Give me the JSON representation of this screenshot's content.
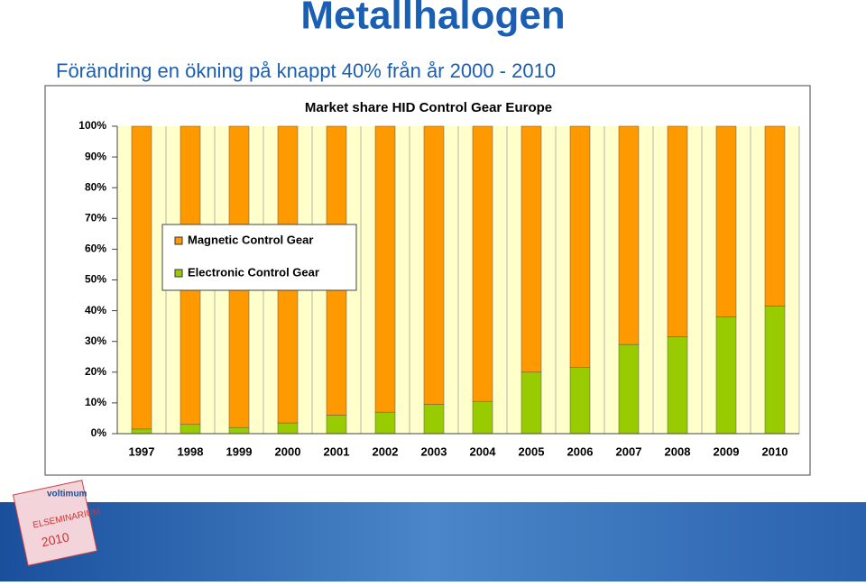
{
  "header": {
    "title": "Metallhalogen",
    "subtitle": "Förändring en ökning på knappt 40% från år 2000 - 2010"
  },
  "chart_data": {
    "type": "stacked_bar",
    "title": "Market share HID Control Gear Europe",
    "categories": [
      "1997",
      "1998",
      "1999",
      "2000",
      "2001",
      "2002",
      "2003",
      "2004",
      "2005",
      "2006",
      "2007",
      "2008",
      "2009",
      "2010"
    ],
    "series": [
      {
        "name": "Magnetic Control Gear",
        "color": "#ff9900",
        "values": [
          98.5,
          97,
          98,
          96.5,
          94,
          93,
          90.5,
          89.5,
          80,
          78.5,
          71,
          68.5,
          62,
          58.5
        ]
      },
      {
        "name": "Electronic Control Gear",
        "color": "#99cc00",
        "values": [
          1.5,
          3,
          2,
          3.5,
          6,
          7,
          9.5,
          10.5,
          20,
          21.5,
          29,
          31.5,
          38,
          41.5
        ]
      }
    ],
    "ylim": [
      0,
      100
    ],
    "yticks": [
      {
        "value": 0,
        "label": "0%"
      },
      {
        "value": 10,
        "label": "10%"
      },
      {
        "value": 20,
        "label": "20%"
      },
      {
        "value": 30,
        "label": "30%"
      },
      {
        "value": 40,
        "label": "40%"
      },
      {
        "value": 50,
        "label": "50%"
      },
      {
        "value": 60,
        "label": "60%"
      },
      {
        "value": 70,
        "label": "70%"
      },
      {
        "value": 80,
        "label": "80%"
      },
      {
        "value": 90,
        "label": "90%"
      },
      {
        "value": 100,
        "label": "100%"
      }
    ],
    "grid": true,
    "legend": "upper left"
  },
  "footer": {
    "logo": {
      "brand": "voltimum",
      "event": "ELSEMINARIUM",
      "year": "2010"
    }
  }
}
